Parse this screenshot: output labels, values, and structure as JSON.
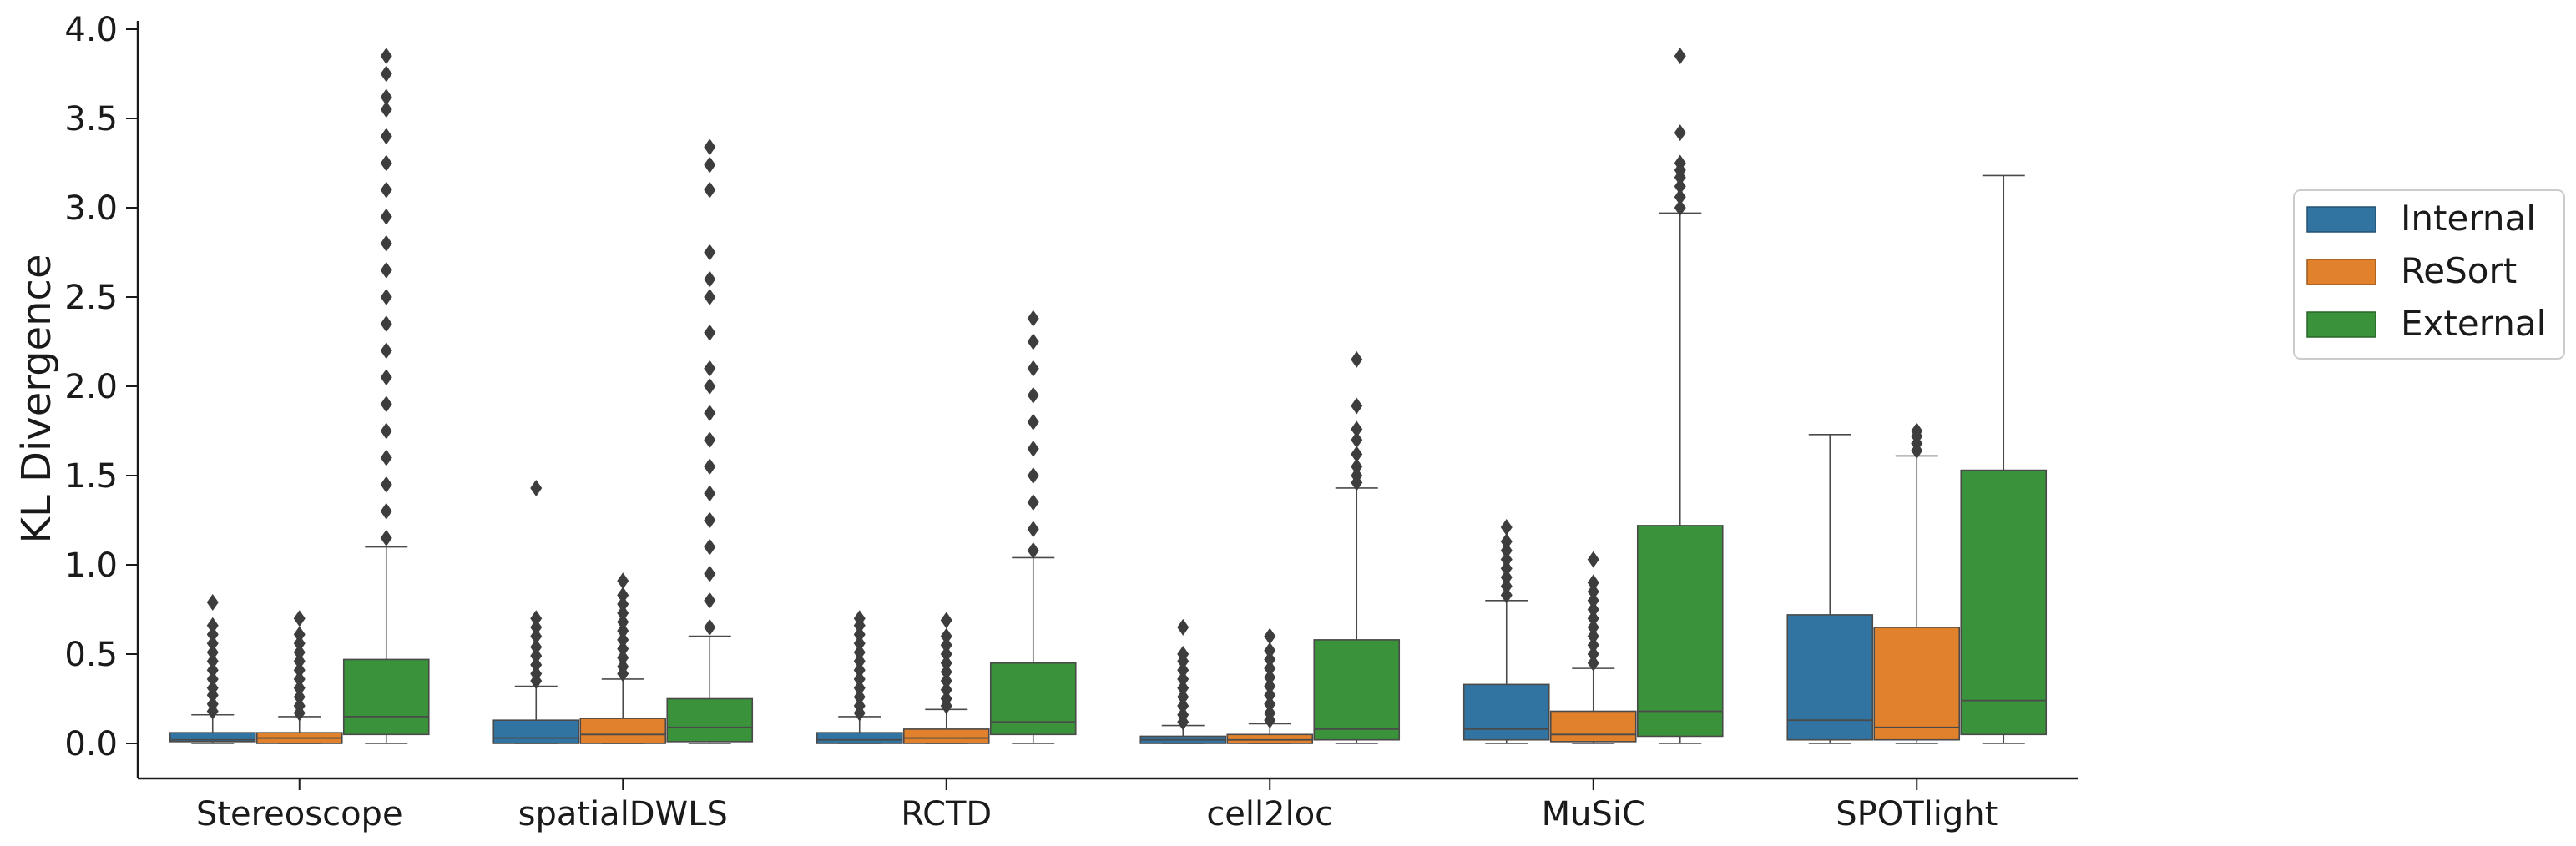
{
  "chart_data": {
    "type": "box",
    "title": "",
    "xlabel": "",
    "ylabel": "KL Divergence",
    "ylim": [
      -0.19,
      4.05
    ],
    "yticks": [
      "0.0",
      "0.5",
      "1.0",
      "1.5",
      "2.0",
      "2.5",
      "3.0",
      "3.5",
      "4.0"
    ],
    "categories": [
      "Stereoscope",
      "spatialDWLS",
      "RCTD",
      "cell2loc",
      "MuSiC",
      "SPOTlight"
    ],
    "legend": {
      "position": "right"
    },
    "grid": false,
    "series": [
      {
        "name": "Internal",
        "color": "#3274a1",
        "boxes": [
          {
            "whisker_low": 0.0,
            "q1": 0.01,
            "median": 0.02,
            "q3": 0.06,
            "whisker_high": 0.16,
            "outliers": [
              0.18,
              0.22,
              0.27,
              0.31,
              0.36,
              0.41,
              0.46,
              0.51,
              0.56,
              0.61,
              0.66,
              0.79
            ]
          },
          {
            "whisker_low": 0.0,
            "q1": 0.0,
            "median": 0.03,
            "q3": 0.13,
            "whisker_high": 0.32,
            "outliers": [
              0.35,
              0.39,
              0.44,
              0.49,
              0.54,
              0.6,
              0.65,
              0.7,
              1.43
            ]
          },
          {
            "whisker_low": 0.0,
            "q1": 0.0,
            "median": 0.02,
            "q3": 0.06,
            "whisker_high": 0.15,
            "outliers": [
              0.17,
              0.21,
              0.26,
              0.31,
              0.36,
              0.41,
              0.46,
              0.51,
              0.56,
              0.61,
              0.66,
              0.7
            ]
          },
          {
            "whisker_low": 0.0,
            "q1": 0.0,
            "median": 0.02,
            "q3": 0.04,
            "whisker_high": 0.1,
            "outliers": [
              0.12,
              0.16,
              0.21,
              0.26,
              0.31,
              0.36,
              0.41,
              0.46,
              0.5,
              0.65
            ]
          },
          {
            "whisker_low": 0.0,
            "q1": 0.02,
            "median": 0.08,
            "q3": 0.33,
            "whisker_high": 0.8,
            "outliers": [
              0.83,
              0.88,
              0.93,
              0.98,
              1.03,
              1.08,
              1.13,
              1.21
            ]
          },
          {
            "whisker_low": 0.0,
            "q1": 0.02,
            "median": 0.13,
            "q3": 0.72,
            "whisker_high": 1.73,
            "outliers": []
          }
        ]
      },
      {
        "name": "ReSort",
        "color": "#e1812c",
        "boxes": [
          {
            "whisker_low": 0.0,
            "q1": 0.0,
            "median": 0.03,
            "q3": 0.06,
            "whisker_high": 0.15,
            "outliers": [
              0.17,
              0.21,
              0.26,
              0.31,
              0.36,
              0.41,
              0.46,
              0.51,
              0.56,
              0.61,
              0.7
            ]
          },
          {
            "whisker_low": 0.0,
            "q1": 0.0,
            "median": 0.05,
            "q3": 0.14,
            "whisker_high": 0.36,
            "outliers": [
              0.39,
              0.43,
              0.48,
              0.53,
              0.58,
              0.63,
              0.68,
              0.73,
              0.78,
              0.83,
              0.91
            ]
          },
          {
            "whisker_low": 0.0,
            "q1": 0.0,
            "median": 0.03,
            "q3": 0.08,
            "whisker_high": 0.19,
            "outliers": [
              0.21,
              0.25,
              0.3,
              0.35,
              0.4,
              0.45,
              0.5,
              0.55,
              0.6,
              0.69
            ]
          },
          {
            "whisker_low": 0.0,
            "q1": 0.0,
            "median": 0.02,
            "q3": 0.05,
            "whisker_high": 0.11,
            "outliers": [
              0.13,
              0.17,
              0.22,
              0.27,
              0.32,
              0.37,
              0.42,
              0.47,
              0.52,
              0.6
            ]
          },
          {
            "whisker_low": 0.0,
            "q1": 0.01,
            "median": 0.05,
            "q3": 0.18,
            "whisker_high": 0.42,
            "outliers": [
              0.45,
              0.5,
              0.55,
              0.6,
              0.65,
              0.7,
              0.75,
              0.8,
              0.85,
              0.9,
              1.03
            ]
          },
          {
            "whisker_low": 0.0,
            "q1": 0.02,
            "median": 0.09,
            "q3": 0.65,
            "whisker_high": 1.61,
            "outliers": [
              1.64,
              1.68,
              1.72,
              1.75
            ]
          }
        ]
      },
      {
        "name": "External",
        "color": "#3a923a",
        "boxes": [
          {
            "whisker_low": 0.0,
            "q1": 0.05,
            "median": 0.15,
            "q3": 0.47,
            "whisker_high": 1.1,
            "outliers": [
              1.15,
              1.3,
              1.45,
              1.6,
              1.75,
              1.9,
              2.05,
              2.2,
              2.35,
              2.5,
              2.65,
              2.8,
              2.95,
              3.1,
              3.25,
              3.4,
              3.55,
              3.62,
              3.75,
              3.85
            ]
          },
          {
            "whisker_low": 0.0,
            "q1": 0.01,
            "median": 0.09,
            "q3": 0.25,
            "whisker_high": 0.6,
            "outliers": [
              0.65,
              0.8,
              0.95,
              1.1,
              1.25,
              1.4,
              1.55,
              1.7,
              1.85,
              2.0,
              2.1,
              2.3,
              2.5,
              2.6,
              2.75,
              3.1,
              3.24,
              3.34
            ]
          },
          {
            "whisker_low": 0.0,
            "q1": 0.05,
            "median": 0.12,
            "q3": 0.45,
            "whisker_high": 1.04,
            "outliers": [
              1.08,
              1.2,
              1.35,
              1.5,
              1.65,
              1.8,
              1.95,
              2.1,
              2.25,
              2.38
            ]
          },
          {
            "whisker_low": 0.0,
            "q1": 0.02,
            "median": 0.08,
            "q3": 0.58,
            "whisker_high": 1.43,
            "outliers": [
              1.46,
              1.5,
              1.55,
              1.62,
              1.7,
              1.76,
              1.89,
              2.15
            ]
          },
          {
            "whisker_low": 0.0,
            "q1": 0.04,
            "median": 0.18,
            "q3": 1.22,
            "whisker_high": 2.97,
            "outliers": [
              3.0,
              3.06,
              3.12,
              3.17,
              3.21,
              3.25,
              3.42,
              3.85
            ]
          },
          {
            "whisker_low": 0.0,
            "q1": 0.05,
            "median": 0.24,
            "q3": 1.53,
            "whisker_high": 3.18,
            "outliers": []
          }
        ]
      }
    ]
  }
}
